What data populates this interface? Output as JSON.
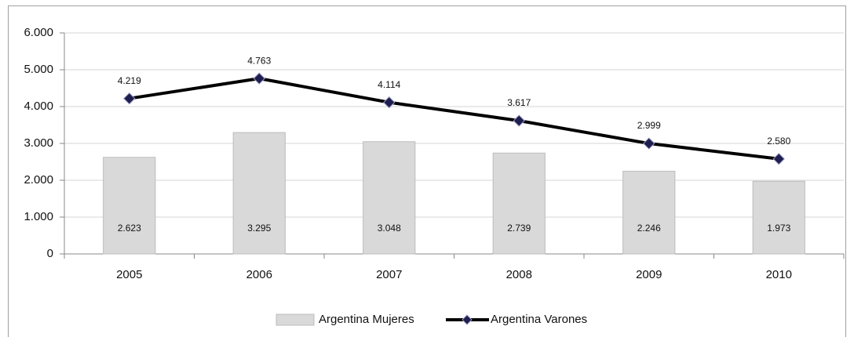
{
  "chart_data": {
    "type": "combo",
    "categories": [
      "2005",
      "2006",
      "2007",
      "2008",
      "2009",
      "2010"
    ],
    "series": [
      {
        "name": "Argentina Mujeres",
        "type": "bar",
        "color": "#d9d9d9",
        "values": [
          2623,
          3295,
          3048,
          2739,
          2246,
          1973
        ],
        "value_labels": [
          "2.623",
          "3.295",
          "3.048",
          "2.739",
          "2.246",
          "1.973"
        ]
      },
      {
        "name": "Argentina Varones",
        "type": "line",
        "color": "#000000",
        "marker_color": "#1f1f4f",
        "values": [
          4219,
          4763,
          4114,
          3617,
          2999,
          2580
        ],
        "value_labels": [
          "4.219",
          "4.763",
          "4.114",
          "3.617",
          "2.999",
          "2.580"
        ]
      }
    ],
    "ylim": [
      0,
      6000
    ],
    "yticks": [
      0,
      {
        "value": 1000,
        "label": "1.000"
      },
      {
        "value": 2000,
        "label": "2.000"
      },
      {
        "value": 3000,
        "label": "3.000"
      },
      {
        "value": 4000,
        "label": "4.000"
      },
      {
        "value": 5000,
        "label": "5.000"
      },
      {
        "value": 6000,
        "label": "6.000"
      }
    ],
    "grid": true,
    "legend": "bottom"
  }
}
